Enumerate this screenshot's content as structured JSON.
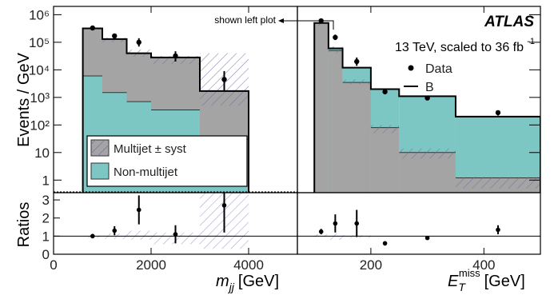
{
  "chart_data": [
    {
      "type": "histogram",
      "panel": "left",
      "xlabel_main": "m",
      "xlabel_sub": "jj",
      "xlabel_unit": "[GeV]",
      "ylabel": "Events / GeV",
      "ratio_ylabel": "Ratios",
      "xlim": [
        0,
        5000
      ],
      "ylim": [
        0.35,
        2000000
      ],
      "y_scale": "log",
      "ratio_ylim": [
        0,
        3.4
      ],
      "x_ticks": [
        "0",
        "2000",
        "4000"
      ],
      "x_tick_values": [
        0,
        2000,
        4000
      ],
      "y_ticks": [
        "1",
        "10",
        "10²",
        "10³",
        "10⁴",
        "10⁵",
        "10⁶"
      ],
      "y_tick_values": [
        1,
        10,
        100,
        1000,
        10000,
        100000,
        1000000
      ],
      "ratio_ticks": [
        "0",
        "1",
        "2",
        "3"
      ],
      "bins": [
        {
          "x0": 600,
          "x1": 1000,
          "total": 320000,
          "nonmultijet": 6000,
          "syst_lo": 300000,
          "syst_hi": 340000
        },
        {
          "x0": 1000,
          "x1": 1500,
          "total": 130000,
          "nonmultijet": 1500,
          "syst_lo": 100000,
          "syst_hi": 145000
        },
        {
          "x0": 1500,
          "x1": 2000,
          "total": 40000,
          "nonmultijet": 700,
          "syst_lo": 30000,
          "syst_hi": 55000
        },
        {
          "x0": 2000,
          "x1": 3000,
          "total": 28000,
          "nonmultijet": 350,
          "syst_lo": 16000,
          "syst_hi": 32000
        },
        {
          "x0": 3000,
          "x1": 4000,
          "total": 1700,
          "nonmultijet": 30,
          "syst_lo": 500,
          "syst_hi": 40000
        }
      ],
      "data_points": [
        {
          "x": 800,
          "y": 330000,
          "err_lo": 20000,
          "err_hi": 20000
        },
        {
          "x": 1250,
          "y": 170000,
          "err_lo": 30000,
          "err_hi": 30000
        },
        {
          "x": 1750,
          "y": 100000,
          "err_lo": 30000,
          "err_hi": 40000
        },
        {
          "x": 2500,
          "y": 32000,
          "err_lo": 12000,
          "err_hi": 15000
        },
        {
          "x": 3500,
          "y": 4500,
          "err_lo": 2800,
          "err_hi": 4500
        }
      ],
      "ratio_points": [
        {
          "x": 800,
          "y": 1.0,
          "err": 0.12
        },
        {
          "x": 1250,
          "y": 1.3,
          "err": 0.25
        },
        {
          "x": 1750,
          "y": 2.45,
          "err": 0.8
        },
        {
          "x": 2500,
          "y": 1.1,
          "err": 0.5
        },
        {
          "x": 3500,
          "y": 2.7,
          "err": 1.5
        }
      ],
      "ratio_band": [
        {
          "x0": 600,
          "x1": 1000,
          "lo": 0.9,
          "hi": 1.05
        },
        {
          "x0": 1000,
          "x1": 1500,
          "lo": 0.85,
          "hi": 1.15
        },
        {
          "x0": 1500,
          "x1": 2000,
          "lo": 0.8,
          "hi": 1.3
        },
        {
          "x0": 2000,
          "x1": 3000,
          "lo": 0.55,
          "hi": 1.2
        },
        {
          "x0": 3000,
          "x1": 4000,
          "lo": 0.3,
          "hi": 3.4
        }
      ],
      "legend": [
        {
          "label": "Multijet ± syst",
          "style": "hatched-gray"
        },
        {
          "label": "Non-multijet",
          "style": "teal"
        }
      ]
    },
    {
      "type": "histogram",
      "panel": "right",
      "xlabel_main": "E",
      "xlabel_sub": "T",
      "xlabel_sup": "miss",
      "xlabel_unit": "[GeV]",
      "xlim": [
        70,
        500
      ],
      "ylim": [
        0.35,
        2000000
      ],
      "y_scale": "log",
      "ratio_ylim": [
        0,
        3.4
      ],
      "x_ticks": [
        "200",
        "400"
      ],
      "x_tick_values": [
        200,
        400
      ],
      "bins": [
        {
          "x0": 100,
          "x1": 125,
          "total": 500000,
          "multijet": 500000,
          "syst_lo": 400000,
          "syst_hi": 560000
        },
        {
          "x0": 125,
          "x1": 150,
          "total": 60000,
          "multijet": 50000,
          "syst_lo": 40000,
          "syst_hi": 70000
        },
        {
          "x0": 150,
          "x1": 200,
          "total": 12000,
          "multijet": 3500,
          "syst_lo": 3000,
          "syst_hi": 4500
        },
        {
          "x0": 200,
          "x1": 250,
          "total": 2000,
          "multijet": 80,
          "syst_lo": 50,
          "syst_hi": 100
        },
        {
          "x0": 250,
          "x1": 350,
          "total": 1100,
          "multijet": 10,
          "syst_lo": 6,
          "syst_hi": 14
        },
        {
          "x0": 350,
          "x1": 500,
          "total": 200,
          "multijet": 1.2,
          "syst_lo": 0.5,
          "syst_hi": 1.3
        }
      ],
      "data_points": [
        {
          "x": 112,
          "y": 600000,
          "err_lo": 60000,
          "err_hi": 60000
        },
        {
          "x": 137,
          "y": 150000,
          "err_lo": 30000,
          "err_hi": 40000
        },
        {
          "x": 175,
          "y": 20000,
          "err_lo": 6000,
          "err_hi": 8000
        },
        {
          "x": 225,
          "y": 1600,
          "err_lo": 300,
          "err_hi": 400
        },
        {
          "x": 300,
          "y": 950,
          "err_lo": 120,
          "err_hi": 120
        },
        {
          "x": 425,
          "y": 280,
          "err_lo": 60,
          "err_hi": 60
        }
      ],
      "ratio_points": [
        {
          "x": 112,
          "y": 1.25,
          "err": 0.15
        },
        {
          "x": 137,
          "y": 1.7,
          "err": 0.5
        },
        {
          "x": 175,
          "y": 1.7,
          "err": 0.75
        },
        {
          "x": 225,
          "y": 0.6,
          "err": 0.12
        },
        {
          "x": 300,
          "y": 0.9,
          "err": 0.1
        },
        {
          "x": 425,
          "y": 1.35,
          "err": 0.25
        }
      ],
      "ratio_band": [
        {
          "x0": 100,
          "x1": 125,
          "lo": 0.95,
          "hi": 1.1
        },
        {
          "x0": 125,
          "x1": 150,
          "lo": 0.8,
          "hi": 1.15
        },
        {
          "x0": 150,
          "x1": 200,
          "lo": 0.9,
          "hi": 1.05
        }
      ],
      "legend": [
        {
          "label": "Data",
          "style": "dot"
        },
        {
          "label": "B",
          "style": "line"
        }
      ],
      "annotations": [
        "ATLAS",
        "13 TeV, scaled to 36 fb",
        "-1",
        "shown left plot"
      ]
    }
  ]
}
